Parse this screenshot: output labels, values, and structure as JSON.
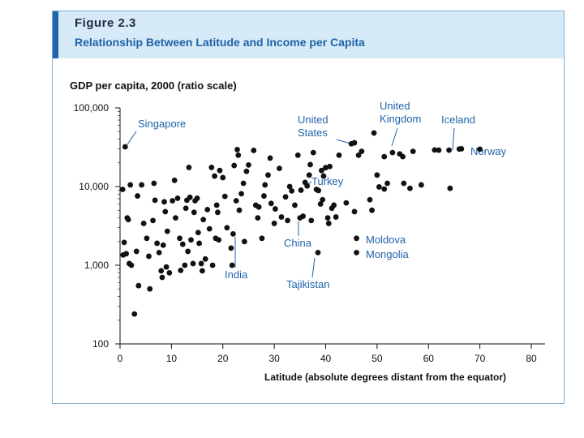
{
  "figure": {
    "label": "Figure 2.3",
    "title": "Relationship Between Latitude and Income per Capita"
  },
  "chart_data": {
    "type": "scatter",
    "title": "Relationship Between Latitude and Income per Capita",
    "ylabel": "GDP per capita, 2000 (ratio scale)",
    "xlabel": "Latitude (absolute degrees distant from the equator)",
    "yscale": "log",
    "xlim": [
      0,
      80
    ],
    "ylim": [
      100,
      100000
    ],
    "xticks": [
      "0",
      "10",
      "20",
      "30",
      "40",
      "50",
      "60",
      "70",
      "80"
    ],
    "yticks": [
      "100",
      "1,000",
      "10,000",
      "100,000"
    ],
    "point_color": "#111111",
    "annotation_color": "#1f63a8",
    "labeled_points": [
      {
        "name": "Singapore",
        "lat": 1,
        "gdp": 32000
      },
      {
        "name": "India",
        "lat": 22,
        "gdp": 2500
      },
      {
        "name": "China",
        "lat": 35,
        "gdp": 4000
      },
      {
        "name": "Tajikistan",
        "lat": 38.5,
        "gdp": 1450
      },
      {
        "name": "Turkey",
        "lat": 39,
        "gdp": 6000
      },
      {
        "name": "United States",
        "lat": 45,
        "gdp": 35000
      },
      {
        "name": "United Kingdom",
        "lat": 53,
        "gdp": 27000
      },
      {
        "name": "Iceland",
        "lat": 64,
        "gdp": 29000
      },
      {
        "name": "Norway",
        "lat": 66,
        "gdp": 30000
      },
      {
        "name": "Moldova",
        "lat": 46,
        "gdp": 2200
      },
      {
        "name": "Mongolia",
        "lat": 46,
        "gdp": 1450
      }
    ],
    "points": [
      [
        0.5,
        9200
      ],
      [
        0.6,
        1350
      ],
      [
        0.8,
        1950
      ],
      [
        1.2,
        1400
      ],
      [
        1.4,
        4000
      ],
      [
        1.6,
        3800
      ],
      [
        1.8,
        1050
      ],
      [
        2,
        10500
      ],
      [
        2.2,
        1000
      ],
      [
        2.8,
        240
      ],
      [
        3.2,
        1500
      ],
      [
        3.4,
        7600
      ],
      [
        3.6,
        550
      ],
      [
        4.2,
        10500
      ],
      [
        4.6,
        3400
      ],
      [
        5.2,
        2200
      ],
      [
        5.6,
        1300
      ],
      [
        5.8,
        500
      ],
      [
        6.4,
        3700
      ],
      [
        6.6,
        11000
      ],
      [
        6.8,
        6700
      ],
      [
        7.2,
        1900
      ],
      [
        7.6,
        1450
      ],
      [
        8,
        850
      ],
      [
        8.2,
        700
      ],
      [
        8.4,
        1800
      ],
      [
        8.6,
        6400
      ],
      [
        8.8,
        4800
      ],
      [
        9,
        950
      ],
      [
        9.2,
        2700
      ],
      [
        9.6,
        800
      ],
      [
        10.2,
        6600
      ],
      [
        10.6,
        12000
      ],
      [
        10.8,
        4000
      ],
      [
        11.2,
        7100
      ],
      [
        11.6,
        2200
      ],
      [
        11.8,
        860
      ],
      [
        12.2,
        1850
      ],
      [
        12.6,
        1000
      ],
      [
        12.8,
        5300
      ],
      [
        13,
        6700
      ],
      [
        13.2,
        1500
      ],
      [
        13.4,
        17500
      ],
      [
        13.6,
        7300
      ],
      [
        13.8,
        2100
      ],
      [
        14.2,
        1050
      ],
      [
        14.4,
        4700
      ],
      [
        14.6,
        6600
      ],
      [
        15,
        7100
      ],
      [
        15.2,
        2600
      ],
      [
        15.4,
        1900
      ],
      [
        15.8,
        1050
      ],
      [
        16,
        850
      ],
      [
        16.2,
        3800
      ],
      [
        16.6,
        1200
      ],
      [
        17,
        5100
      ],
      [
        17.4,
        2900
      ],
      [
        17.8,
        17500
      ],
      [
        18,
        1000
      ],
      [
        18.4,
        13600
      ],
      [
        18.6,
        2200
      ],
      [
        18.8,
        5800
      ],
      [
        19,
        4700
      ],
      [
        19.2,
        2100
      ],
      [
        19.4,
        16000
      ],
      [
        20,
        13000
      ],
      [
        20.4,
        7500
      ],
      [
        20.8,
        3000
      ],
      [
        21.6,
        1650
      ],
      [
        21.8,
        1000
      ],
      [
        22.2,
        18500
      ],
      [
        22.6,
        6600
      ],
      [
        22.8,
        29500
      ],
      [
        23,
        25000
      ],
      [
        23.2,
        5000
      ],
      [
        23.6,
        8100
      ],
      [
        24,
        11000
      ],
      [
        24.2,
        2000
      ],
      [
        24.6,
        15600
      ],
      [
        25,
        18800
      ],
      [
        26,
        28800
      ],
      [
        26.4,
        5800
      ],
      [
        26.8,
        4000
      ],
      [
        27,
        5500
      ],
      [
        27.6,
        2200
      ],
      [
        28,
        7600
      ],
      [
        28.2,
        10500
      ],
      [
        28.8,
        14000
      ],
      [
        29.2,
        23000
      ],
      [
        29.4,
        6100
      ],
      [
        30,
        3400
      ],
      [
        30.2,
        5200
      ],
      [
        31,
        17000
      ],
      [
        31.4,
        4100
      ],
      [
        32.2,
        7400
      ],
      [
        32.6,
        3700
      ],
      [
        33,
        10000
      ],
      [
        33.4,
        8800
      ],
      [
        34,
        5800
      ],
      [
        34.6,
        25000
      ],
      [
        35.2,
        9000
      ],
      [
        35.6,
        4200
      ],
      [
        36,
        11300
      ],
      [
        36.4,
        10200
      ],
      [
        36.8,
        14000
      ],
      [
        37.2,
        3700
      ],
      [
        37.6,
        27000
      ],
      [
        38.2,
        9200
      ],
      [
        38.6,
        8900
      ],
      [
        39.2,
        16000
      ],
      [
        39.4,
        6800
      ],
      [
        39.6,
        13600
      ],
      [
        40,
        17400
      ],
      [
        40.4,
        4000
      ],
      [
        40.6,
        3400
      ],
      [
        40.8,
        18000
      ],
      [
        41.2,
        5300
      ],
      [
        41.6,
        5800
      ],
      [
        42,
        4100
      ],
      [
        42.6,
        25000
      ],
      [
        44,
        6200
      ],
      [
        45.6,
        4800
      ],
      [
        46.4,
        25000
      ],
      [
        47,
        28000
      ],
      [
        48.6,
        6800
      ],
      [
        49,
        5000
      ],
      [
        49.4,
        48000
      ],
      [
        50,
        14000
      ],
      [
        50.4,
        9900
      ],
      [
        51.4,
        24000
      ],
      [
        52,
        11000
      ],
      [
        54.4,
        26000
      ],
      [
        55,
        24000
      ],
      [
        55.2,
        11000
      ],
      [
        56.4,
        9500
      ],
      [
        58.6,
        10500
      ],
      [
        61.2,
        29200
      ],
      [
        62,
        29000
      ],
      [
        64.2,
        9500
      ],
      [
        66.4,
        30200
      ],
      [
        70,
        29800
      ],
      [
        57,
        28000
      ],
      [
        51.4,
        9300
      ],
      [
        37,
        19000
      ],
      [
        45.6,
        36000
      ]
    ]
  }
}
